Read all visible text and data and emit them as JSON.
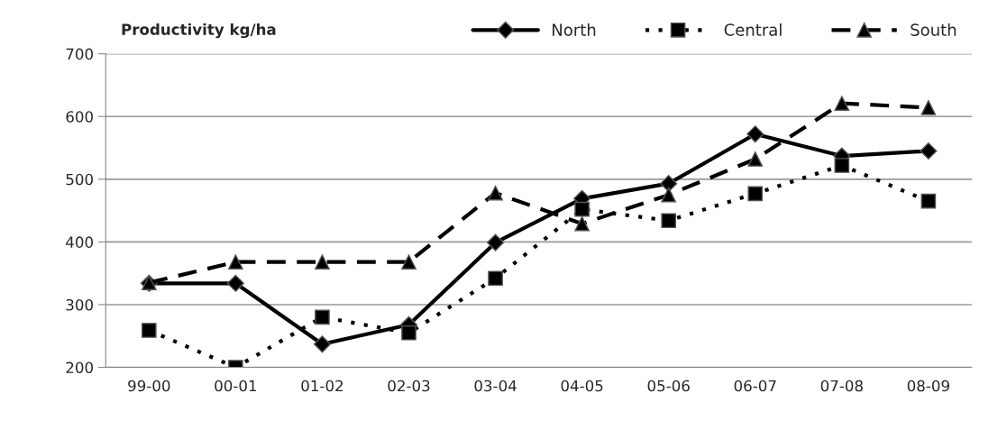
{
  "chart_data": {
    "type": "line",
    "title": "Productivity kg/ha",
    "categories": [
      "99-00",
      "00-01",
      "01-02",
      "02-03",
      "03-04",
      "04-05",
      "05-06",
      "06-07",
      "07-08",
      "08-09"
    ],
    "series": [
      {
        "name": "North",
        "color": "#000000",
        "marker": "diamond",
        "line_style": "solid",
        "values": [
          334,
          334,
          237,
          268,
          399,
          469,
          493,
          572,
          537,
          545
        ]
      },
      {
        "name": "Central",
        "color": "#000000",
        "marker": "square",
        "line_style": "dotted",
        "values": [
          259,
          200,
          280,
          255,
          342,
          452,
          434,
          477,
          522,
          465
        ]
      },
      {
        "name": "South",
        "color": "#000000",
        "marker": "triangle",
        "line_style": "dashed",
        "values": [
          335,
          368,
          368,
          368,
          478,
          429,
          475,
          532,
          621,
          614
        ]
      }
    ],
    "ylim": [
      200,
      700
    ],
    "yticks": [
      200,
      300,
      400,
      500,
      600,
      700
    ],
    "grid": "y",
    "legend": "top right"
  }
}
